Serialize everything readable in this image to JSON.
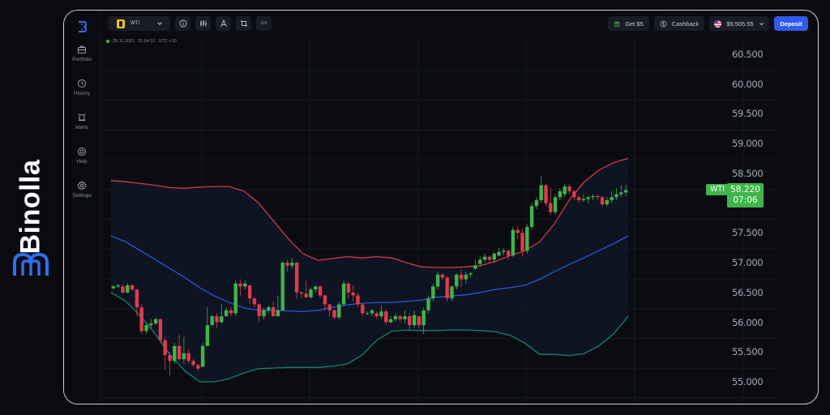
{
  "brand": {
    "name": "Binolla",
    "logo_color": "#2f6ef0"
  },
  "sidebar": {
    "items": [
      {
        "label": "Portfolio",
        "icon": "briefcase-icon"
      },
      {
        "label": "History",
        "icon": "history-clock-icon"
      },
      {
        "label": "Alerts",
        "icon": "alarm-bell-icon"
      },
      {
        "label": "Help",
        "icon": "lifebuoy-icon"
      },
      {
        "label": "Settings",
        "icon": "gear-icon"
      }
    ]
  },
  "toolbar": {
    "asset": {
      "label": "WTI",
      "icon": "oil-barrel-icon",
      "icon_color": "#f3c316"
    },
    "buttons": [
      {
        "name": "info",
        "icon": "info-icon"
      },
      {
        "name": "indicators",
        "icon": "candlestick-icon"
      },
      {
        "name": "drawing",
        "icon": "compass-icon"
      },
      {
        "name": "fullscreen",
        "icon": "crop-icon"
      }
    ],
    "timeframe": "1m",
    "get_bonus": "Get $5",
    "cashback": "Cashback",
    "balance": "$9,505.55",
    "deposit": "Deposit",
    "accent": "#2f5bea"
  },
  "status": {
    "date": "25.11.2021",
    "time": "21:04:31",
    "timezone": "UTC +10"
  },
  "price_tag": {
    "symbol": "WTI",
    "price": "58.220",
    "countdown": "07:06",
    "color": "#3fb54a"
  },
  "chart_data": {
    "type": "candlestick",
    "title": "WTI 1m",
    "y_ticks": [
      "60.500",
      "60.000",
      "59.500",
      "59.000",
      "58.500",
      "58.000",
      "57.500",
      "57.000",
      "56.500",
      "56.000",
      "55.500",
      "55.000"
    ],
    "ylim": [
      54.9,
      60.6
    ],
    "current_price": 58.22,
    "grid": true,
    "colors": {
      "up": "#3fb54a",
      "down": "#e23a4e",
      "upper_band": "#d23a4a",
      "middle_band": "#2c54d6",
      "lower_band": "#17826e"
    },
    "bollinger": {
      "upper": [
        58.38,
        58.36,
        58.33,
        58.3,
        58.26,
        58.25,
        58.27,
        58.28,
        58.28,
        58.2,
        58.0,
        57.7,
        57.4,
        57.15,
        57.04,
        57.07,
        57.1,
        57.08,
        57.1,
        57.08,
        57.0,
        56.93,
        56.92,
        56.92,
        56.93,
        56.95,
        57.02,
        57.12,
        57.2,
        57.35,
        57.65,
        58.05,
        58.35,
        58.55,
        58.68,
        58.75
      ],
      "middle": [
        57.45,
        57.35,
        57.2,
        57.05,
        56.9,
        56.75,
        56.58,
        56.44,
        56.33,
        56.24,
        56.2,
        56.2,
        56.19,
        56.18,
        56.2,
        56.25,
        56.29,
        56.32,
        56.33,
        56.33,
        56.35,
        56.37,
        56.42,
        56.44,
        56.46,
        56.5,
        56.55,
        56.58,
        56.62,
        56.72,
        56.85,
        56.97,
        57.08,
        57.2,
        57.32,
        57.45
      ],
      "lower": [
        56.5,
        56.35,
        56.1,
        55.8,
        55.45,
        55.18,
        55.0,
        55.0,
        55.05,
        55.15,
        55.22,
        55.23,
        55.24,
        55.24,
        55.24,
        55.26,
        55.3,
        55.45,
        55.7,
        55.85,
        55.87,
        55.86,
        55.86,
        55.87,
        55.87,
        55.86,
        55.84,
        55.78,
        55.65,
        55.46,
        55.46,
        55.44,
        55.47,
        55.6,
        55.8,
        56.1
      ]
    },
    "candles": [
      [
        56.57,
        56.6,
        56.55,
        56.62
      ],
      [
        56.6,
        56.62,
        56.58,
        56.64
      ],
      [
        56.6,
        56.5,
        56.48,
        56.63
      ],
      [
        56.5,
        56.62,
        56.48,
        56.66
      ],
      [
        56.62,
        56.55,
        56.52,
        56.64
      ],
      [
        56.55,
        56.25,
        56.1,
        56.56
      ],
      [
        56.25,
        55.85,
        55.8,
        56.3
      ],
      [
        55.85,
        55.95,
        55.8,
        56.0
      ],
      [
        55.95,
        55.98,
        55.9,
        56.05
      ],
      [
        55.98,
        56.05,
        55.95,
        56.08
      ],
      [
        56.05,
        55.7,
        55.65,
        56.06
      ],
      [
        55.7,
        55.45,
        55.2,
        55.75
      ],
      [
        55.45,
        55.35,
        55.1,
        55.5
      ],
      [
        55.35,
        55.6,
        55.3,
        55.65
      ],
      [
        55.6,
        55.38,
        55.35,
        55.8
      ],
      [
        55.38,
        55.48,
        55.3,
        55.75
      ],
      [
        55.48,
        55.35,
        55.3,
        55.55
      ],
      [
        55.35,
        55.28,
        55.25,
        55.38
      ],
      [
        55.28,
        55.22,
        55.18,
        55.3
      ],
      [
        55.25,
        55.6,
        55.55,
        55.65
      ],
      [
        55.6,
        55.95,
        55.9,
        56.25
      ],
      [
        55.95,
        56.1,
        55.95,
        56.12
      ],
      [
        56.1,
        56.0,
        55.9,
        56.15
      ],
      [
        56.0,
        56.1,
        55.98,
        56.3
      ],
      [
        56.1,
        56.2,
        56.1,
        56.25
      ],
      [
        56.2,
        56.15,
        56.1,
        56.25
      ],
      [
        56.15,
        56.65,
        56.1,
        56.7
      ],
      [
        56.65,
        56.6,
        56.45,
        56.72
      ],
      [
        56.6,
        56.65,
        56.55,
        56.7
      ],
      [
        56.62,
        56.4,
        56.3,
        56.63
      ],
      [
        56.4,
        56.3,
        56.25,
        56.42
      ],
      [
        56.3,
        56.1,
        56.0,
        56.32
      ],
      [
        56.1,
        56.2,
        56.05,
        56.25
      ],
      [
        56.2,
        56.25,
        56.15,
        56.28
      ],
      [
        56.25,
        56.1,
        56.1,
        56.35
      ],
      [
        56.1,
        56.2,
        56.1,
        56.45
      ],
      [
        56.2,
        57.0,
        56.2,
        57.02
      ],
      [
        57.0,
        56.95,
        56.85,
        57.05
      ],
      [
        56.95,
        57.0,
        56.9,
        57.08
      ],
      [
        57.0,
        56.5,
        56.4,
        57.02
      ],
      [
        56.5,
        56.48,
        56.4,
        56.52
      ],
      [
        56.48,
        56.42,
        56.4,
        56.7
      ],
      [
        56.42,
        56.55,
        56.4,
        56.58
      ],
      [
        56.55,
        56.6,
        56.5,
        56.62
      ],
      [
        56.6,
        56.45,
        56.4,
        56.62
      ],
      [
        56.45,
        56.3,
        56.2,
        56.46
      ],
      [
        56.3,
        56.2,
        56.1,
        56.3
      ],
      [
        56.2,
        56.08,
        56.05,
        56.22
      ],
      [
        56.08,
        56.3,
        56.05,
        56.35
      ],
      [
        56.3,
        56.65,
        56.28,
        56.7
      ],
      [
        56.65,
        56.5,
        56.4,
        56.67
      ],
      [
        56.5,
        56.45,
        56.35,
        56.62
      ],
      [
        56.45,
        56.3,
        56.25,
        56.5
      ],
      [
        56.3,
        56.15,
        56.1,
        56.32
      ],
      [
        56.15,
        56.15,
        56.12,
        56.18
      ],
      [
        56.15,
        56.2,
        56.1,
        56.22
      ],
      [
        56.15,
        56.1,
        56.05,
        56.18
      ],
      [
        56.1,
        56.18,
        56.05,
        56.28
      ],
      [
        56.18,
        56.0,
        55.95,
        56.22
      ],
      [
        56.0,
        56.05,
        55.98,
        56.1
      ],
      [
        56.05,
        56.1,
        56.0,
        56.15
      ],
      [
        56.1,
        56.05,
        56.0,
        56.12
      ],
      [
        56.05,
        56.1,
        55.98,
        56.2
      ],
      [
        56.1,
        55.95,
        55.85,
        56.15
      ],
      [
        55.95,
        56.12,
        55.9,
        56.2
      ],
      [
        56.1,
        55.95,
        55.9,
        56.1
      ],
      [
        55.95,
        56.2,
        55.8,
        56.25
      ],
      [
        56.2,
        56.4,
        56.15,
        56.45
      ],
      [
        56.4,
        56.6,
        56.35,
        56.65
      ],
      [
        56.6,
        56.8,
        56.55,
        56.85
      ],
      [
        56.8,
        56.75,
        56.7,
        56.82
      ],
      [
        56.75,
        56.4,
        56.35,
        56.78
      ],
      [
        56.4,
        56.6,
        56.35,
        56.62
      ],
      [
        56.6,
        56.8,
        56.55,
        56.82
      ],
      [
        56.8,
        56.72,
        56.6,
        56.9
      ],
      [
        56.72,
        56.8,
        56.65,
        56.85
      ],
      [
        56.8,
        56.82,
        56.75,
        56.85
      ],
      [
        56.9,
        56.95,
        56.88,
        57.05
      ],
      [
        56.98,
        57.05,
        56.95,
        57.1
      ],
      [
        57.05,
        57.1,
        57.0,
        57.15
      ],
      [
        57.1,
        57.05,
        57.0,
        57.12
      ],
      [
        57.05,
        57.15,
        57.0,
        57.18
      ],
      [
        57.12,
        57.18,
        57.1,
        57.25
      ],
      [
        57.18,
        57.2,
        57.12,
        57.25
      ],
      [
        57.2,
        57.12,
        57.05,
        57.22
      ],
      [
        57.12,
        57.55,
        57.1,
        57.6
      ],
      [
        57.55,
        57.5,
        57.4,
        57.62
      ],
      [
        57.5,
        57.2,
        57.1,
        57.58
      ],
      [
        57.2,
        57.6,
        57.15,
        57.65
      ],
      [
        57.6,
        57.95,
        57.55,
        58.0
      ],
      [
        57.95,
        58.05,
        57.9,
        58.1
      ],
      [
        58.05,
        58.3,
        58.0,
        58.45
      ],
      [
        58.3,
        58.0,
        57.95,
        58.32
      ],
      [
        58.0,
        57.85,
        57.8,
        58.25
      ],
      [
        57.85,
        58.1,
        57.8,
        58.15
      ],
      [
        58.1,
        58.2,
        58.05,
        58.25
      ],
      [
        58.15,
        58.28,
        58.1,
        58.32
      ],
      [
        58.28,
        58.2,
        58.15,
        58.32
      ],
      [
        58.2,
        58.1,
        58.05,
        58.22
      ],
      [
        58.1,
        58.05,
        58.0,
        58.15
      ],
      [
        58.05,
        58.07,
        58.02,
        58.15
      ],
      [
        58.07,
        58.1,
        58.0,
        58.12
      ],
      [
        58.1,
        58.12,
        58.05,
        58.15
      ],
      [
        58.12,
        58.1,
        58.05,
        58.15
      ],
      [
        58.1,
        57.98,
        57.95,
        58.12
      ],
      [
        57.98,
        58.05,
        57.95,
        58.1
      ],
      [
        58.05,
        58.1,
        58.0,
        58.2
      ],
      [
        58.1,
        58.15,
        58.05,
        58.25
      ],
      [
        58.15,
        58.18,
        58.1,
        58.3
      ],
      [
        58.18,
        58.22,
        58.12,
        58.3
      ]
    ]
  }
}
